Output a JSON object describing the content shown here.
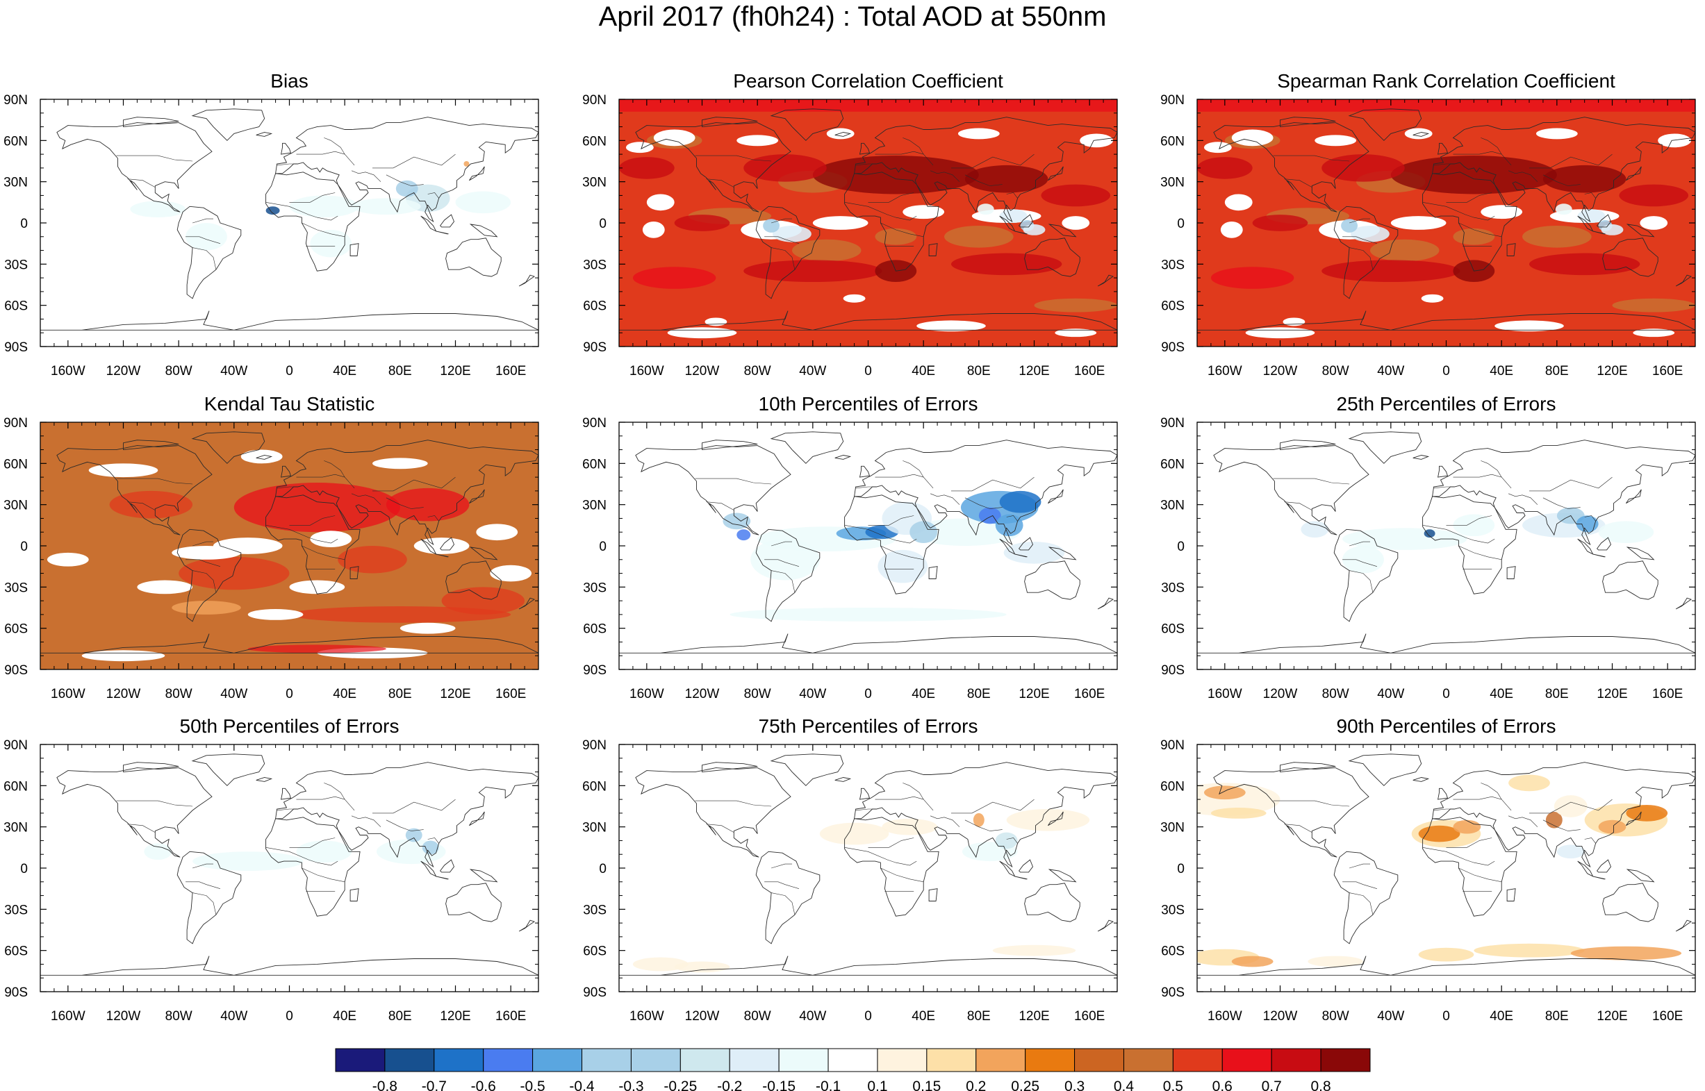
{
  "title": "April 2017 (fh0h24) : Total AOD at 550nm",
  "axes": {
    "lat_labels": [
      "90N",
      "60N",
      "30N",
      "0",
      "30S",
      "60S",
      "90S"
    ],
    "lon_labels": [
      "160W",
      "120W",
      "80W",
      "40W",
      "0",
      "40E",
      "80E",
      "120E",
      "160E"
    ]
  },
  "panels": [
    {
      "title": "Bias",
      "field": "bias"
    },
    {
      "title": "Pearson Correlation Coefficient",
      "field": "pearson"
    },
    {
      "title": "Spearman Rank Correlation Coefficient",
      "field": "spearman"
    },
    {
      "title": "Kendal Tau Statistic",
      "field": "kendall"
    },
    {
      "title": "10th Percentiles of Errors",
      "field": "p10"
    },
    {
      "title": "25th Percentiles of Errors",
      "field": "p25"
    },
    {
      "title": "50th Percentiles of Errors",
      "field": "p50"
    },
    {
      "title": "75th Percentiles of Errors",
      "field": "p75"
    },
    {
      "title": "90th Percentiles of Errors",
      "field": "p90"
    }
  ],
  "colorbar": {
    "colors": [
      "#1a1a7a",
      "#17508f",
      "#1e72c8",
      "#4a7cf0",
      "#5aa6e0",
      "#a8d0e8",
      "#a8d0e8",
      "#cfe8ee",
      "#dfeef8",
      "#ecfbfb",
      "#ffffff",
      "#fef3df",
      "#fde0a8",
      "#f2a45c",
      "#e97a10",
      "#cc6522",
      "#c97030",
      "#e03a1c",
      "#e8101a",
      "#c80c12",
      "#8a0808"
    ],
    "labels": [
      "-0.8",
      "-0.7",
      "-0.6",
      "-0.5",
      "-0.4",
      "-0.3",
      "-0.25",
      "-0.2",
      "-0.15",
      "-0.1",
      "0.1",
      "0.15",
      "0.2",
      "0.25",
      "0.3",
      "0.4",
      "0.5",
      "0.6",
      "0.7",
      "0.8"
    ]
  }
}
